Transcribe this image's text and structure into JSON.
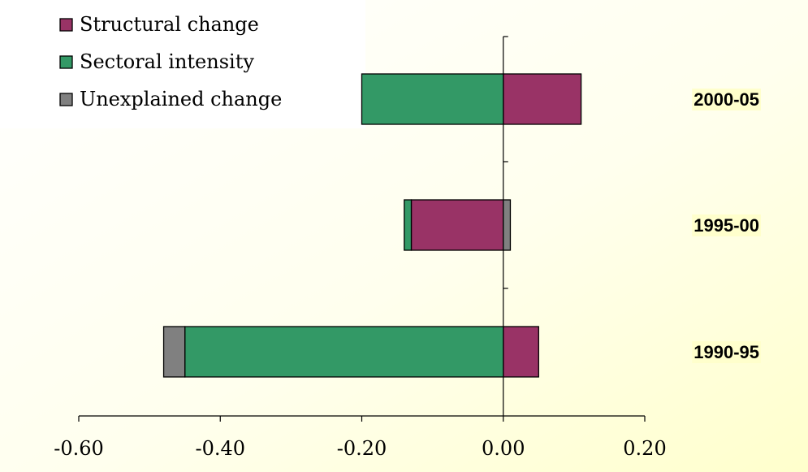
{
  "chart_data": {
    "type": "bar",
    "orientation": "horizontal",
    "stacked": true,
    "categories": [
      "2000-05",
      "1995-00",
      "1990-95"
    ],
    "series": [
      {
        "name": "Structural change",
        "color": "#993366",
        "values": [
          0.11,
          -0.13,
          0.05
        ]
      },
      {
        "name": "Sectoral intensity",
        "color": "#339966",
        "values": [
          -0.2,
          -0.01,
          -0.45
        ]
      },
      {
        "name": "Unexplained change",
        "color": "#808080",
        "values": [
          0.0,
          0.01,
          -0.03
        ]
      }
    ],
    "xlim": [
      -0.6,
      0.2
    ],
    "xticks": [
      -0.6,
      -0.4,
      -0.2,
      0.0,
      0.2
    ],
    "xtick_labels": [
      "-0.60",
      "-0.40",
      "-0.20",
      "0.00",
      "0.20"
    ],
    "title": "",
    "xlabel": "",
    "ylabel": "",
    "grid": false,
    "legend_position": "top-left",
    "background": "gradient light yellow",
    "category_label_highlight": "#ffffcc"
  }
}
